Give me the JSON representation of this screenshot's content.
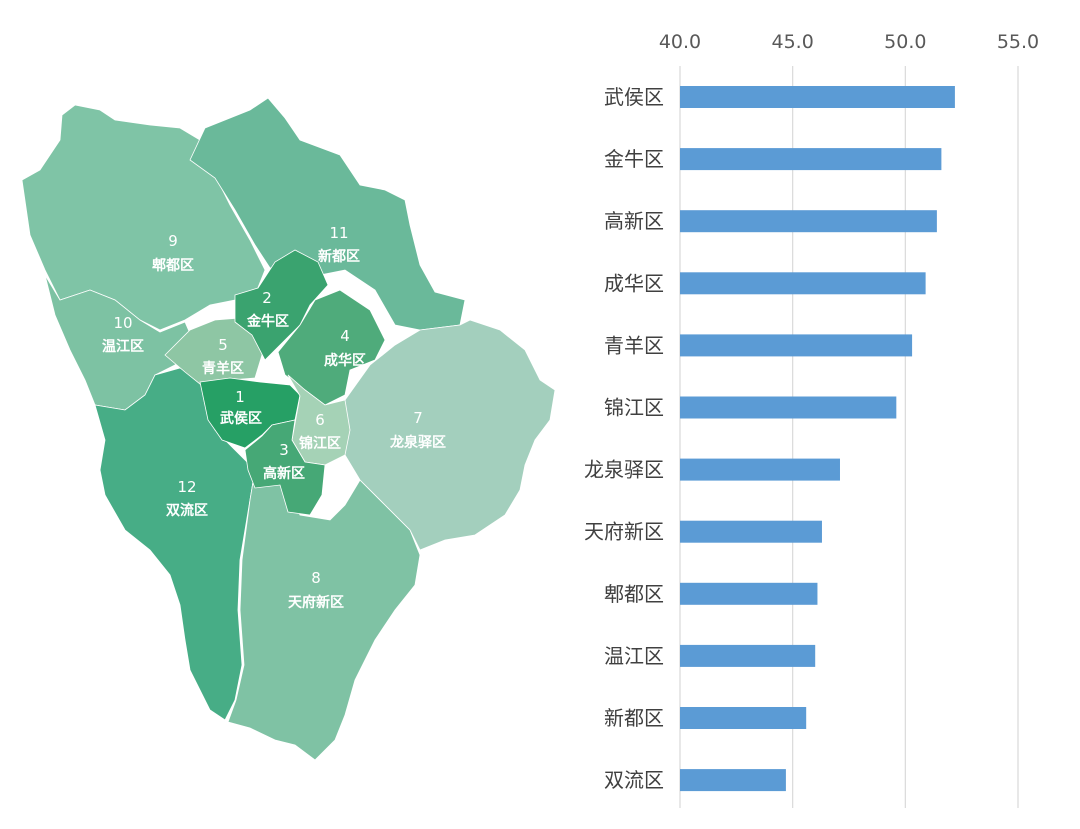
{
  "map": {
    "districts": [
      {
        "id": "wuhou",
        "num": "1",
        "name": "武侯区",
        "color": "#26a065"
      },
      {
        "id": "jinniu",
        "num": "2",
        "name": "金牛区",
        "color": "#3aa36f"
      },
      {
        "id": "gaoxin",
        "num": "3",
        "name": "高新区",
        "color": "#46a876"
      },
      {
        "id": "chenghua",
        "num": "4",
        "name": "成华区",
        "color": "#4fab7b"
      },
      {
        "id": "qingyang",
        "num": "5",
        "name": "青羊区",
        "color": "#8ec6a4"
      },
      {
        "id": "jinjiang",
        "num": "6",
        "name": "锦江区",
        "color": "#a5d2b6"
      },
      {
        "id": "longquanyi",
        "num": "7",
        "name": "龙泉驿区",
        "color": "#a3cfbd"
      },
      {
        "id": "tianfu",
        "num": "8",
        "name": "天府新区",
        "color": "#7fc2a4"
      },
      {
        "id": "pidu",
        "num": "9",
        "name": "郫都区",
        "color": "#7fc4a6"
      },
      {
        "id": "wenjiang",
        "num": "10",
        "name": "温江区",
        "color": "#7dc2a3"
      },
      {
        "id": "xindu",
        "num": "11",
        "name": "新都区",
        "color": "#6ab99a"
      },
      {
        "id": "shuangliu",
        "num": "12",
        "name": "双流区",
        "color": "#47ad86"
      }
    ]
  },
  "chart_data": {
    "type": "bar",
    "orientation": "horizontal",
    "categories": [
      "武侯区",
      "金牛区",
      "高新区",
      "成华区",
      "青羊区",
      "锦江区",
      "龙泉驿区",
      "天府新区",
      "郫都区",
      "温江区",
      "新都区",
      "双流区"
    ],
    "values": [
      52.2,
      51.6,
      51.4,
      50.9,
      50.3,
      49.6,
      47.1,
      46.3,
      46.1,
      46.0,
      45.6,
      44.7
    ],
    "xlim": [
      40.0,
      55.0
    ],
    "xticks": [
      "40.0",
      "45.0",
      "50.0",
      "55.0"
    ],
    "axis_position": "top",
    "grid": true,
    "bar_color": "#5b9bd5",
    "title": "",
    "xlabel": "",
    "ylabel": ""
  }
}
